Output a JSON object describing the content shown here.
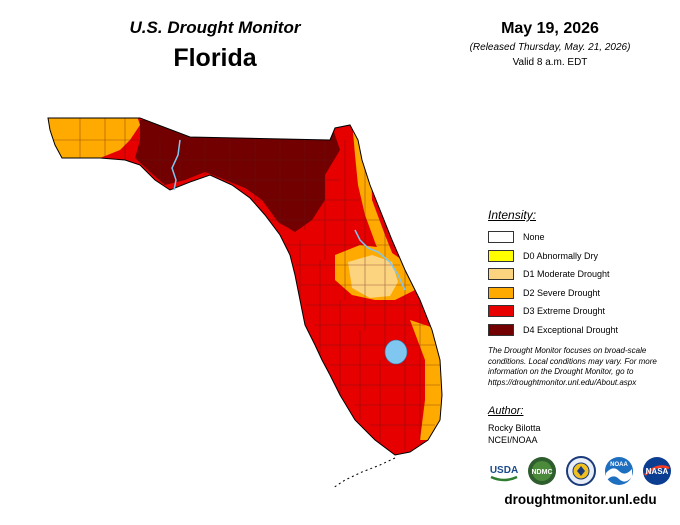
{
  "header": {
    "series_title": "U.S. Drought Monitor",
    "region": "Florida",
    "date": "May 19, 2026",
    "released": "(Released Thursday, May. 21, 2026)",
    "valid": "Valid 8 a.m. EDT"
  },
  "legend": {
    "title": "Intensity:",
    "items": [
      {
        "label": "None",
        "color": "#ffffff"
      },
      {
        "label": "D0 Abnormally Dry",
        "color": "#ffff00"
      },
      {
        "label": "D1 Moderate Drought",
        "color": "#fcd37f"
      },
      {
        "label": "D2 Severe Drought",
        "color": "#ffaa00"
      },
      {
        "label": "D3 Extreme Drought",
        "color": "#e60000"
      },
      {
        "label": "D4 Exceptional Drought",
        "color": "#730000"
      }
    ]
  },
  "note": "The Drought Monitor focuses on broad-scale conditions. Local conditions may vary. For more information on the Drought Monitor, go to https://droughtmonitor.unl.edu/About.aspx",
  "author": {
    "title": "Author:",
    "name": "Rocky Bilotta",
    "org": "NCEI/NOAA"
  },
  "logos": [
    {
      "icon": "usda-logo",
      "text": "USDA"
    },
    {
      "icon": "ndmc-logo",
      "text": "NDMC"
    },
    {
      "icon": "doc-seal",
      "text": ""
    },
    {
      "icon": "noaa-logo",
      "text": "NOAA"
    },
    {
      "icon": "nasa-logo",
      "text": "NASA"
    }
  ],
  "url": "droughtmonitor.unl.edu",
  "colors": {
    "county_line": "#5a1a1a",
    "water": "#7fc7f0",
    "map_outline": "#000000"
  }
}
